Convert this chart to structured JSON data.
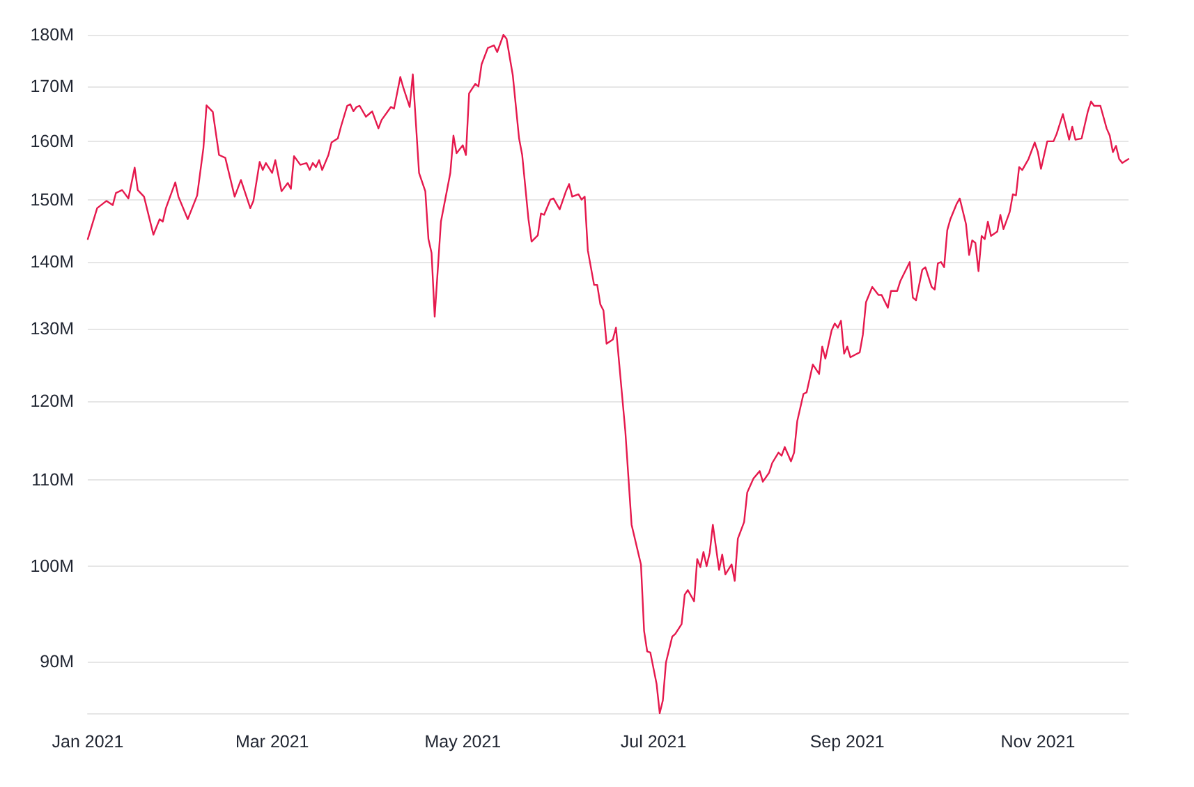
{
  "chart_data": {
    "type": "line",
    "log": "y",
    "grid": "y",
    "marker": "none",
    "line_style": "solid",
    "xlim": [
      "2021-01-01",
      "2021-11-30"
    ],
    "xticks": [
      {
        "value": "2021-01-01",
        "label": "Jan 2021"
      },
      {
        "value": "2021-03-01",
        "label": "Mar 2021"
      },
      {
        "value": "2021-05-01",
        "label": "May 2021"
      },
      {
        "value": "2021-07-01",
        "label": "Jul 2021"
      },
      {
        "value": "2021-09-01",
        "label": "Sep 2021"
      },
      {
        "value": "2021-11-01",
        "label": "Nov 2021"
      }
    ],
    "ylim": [
      85,
      180
    ],
    "yticks": [
      {
        "value": 90,
        "label": "90M"
      },
      {
        "value": 100,
        "label": "100M"
      },
      {
        "value": 110,
        "label": "110M"
      },
      {
        "value": 120,
        "label": "120M"
      },
      {
        "value": 130,
        "label": "130M"
      },
      {
        "value": 140,
        "label": "140M"
      },
      {
        "value": 150,
        "label": "150M"
      },
      {
        "value": 160,
        "label": "160M"
      },
      {
        "value": 170,
        "label": "170M"
      },
      {
        "value": 180,
        "label": "180M"
      }
    ],
    "series": [
      {
        "color": "#e5194d",
        "x": [
          "2021-01-01",
          "2021-01-04",
          "2021-01-07",
          "2021-01-09",
          "2021-01-10",
          "2021-01-12",
          "2021-01-14",
          "2021-01-16",
          "2021-01-17",
          "2021-01-19",
          "2021-01-22",
          "2021-01-24",
          "2021-01-25",
          "2021-01-26",
          "2021-01-29",
          "2021-01-30",
          "2021-02-02",
          "2021-02-05",
          "2021-02-07",
          "2021-02-08",
          "2021-02-10",
          "2021-02-12",
          "2021-02-14",
          "2021-02-17",
          "2021-02-19",
          "2021-02-22",
          "2021-02-23",
          "2021-02-25",
          "2021-02-26",
          "2021-02-27",
          "2021-03-01",
          "2021-03-02",
          "2021-03-04",
          "2021-03-06",
          "2021-03-07",
          "2021-03-08",
          "2021-03-10",
          "2021-03-12",
          "2021-03-13",
          "2021-03-14",
          "2021-03-15",
          "2021-03-16",
          "2021-03-17",
          "2021-03-19",
          "2021-03-20",
          "2021-03-22",
          "2021-03-23",
          "2021-03-25",
          "2021-03-26",
          "2021-03-27",
          "2021-03-28",
          "2021-03-29",
          "2021-03-31",
          "2021-04-01",
          "2021-04-02",
          "2021-04-04",
          "2021-04-05",
          "2021-04-08",
          "2021-04-09",
          "2021-04-11",
          "2021-04-12",
          "2021-04-14",
          "2021-04-15",
          "2021-04-17",
          "2021-04-19",
          "2021-04-20",
          "2021-04-21",
          "2021-04-22",
          "2021-04-24",
          "2021-04-27",
          "2021-04-28",
          "2021-04-29",
          "2021-05-01",
          "2021-05-02",
          "2021-05-03",
          "2021-05-05",
          "2021-05-06",
          "2021-05-07",
          "2021-05-09",
          "2021-05-11",
          "2021-05-12",
          "2021-05-14",
          "2021-05-15",
          "2021-05-17",
          "2021-05-19",
          "2021-05-20",
          "2021-05-22",
          "2021-05-23",
          "2021-05-25",
          "2021-05-26",
          "2021-05-27",
          "2021-05-29",
          "2021-05-30",
          "2021-06-01",
          "2021-06-03",
          "2021-06-04",
          "2021-06-05",
          "2021-06-07",
          "2021-06-08",
          "2021-06-09",
          "2021-06-10",
          "2021-06-12",
          "2021-06-13",
          "2021-06-14",
          "2021-06-15",
          "2021-06-16",
          "2021-06-18",
          "2021-06-19",
          "2021-06-22",
          "2021-06-24",
          "2021-06-27",
          "2021-06-28",
          "2021-06-29",
          "2021-06-30",
          "2021-07-02",
          "2021-07-03",
          "2021-07-04",
          "2021-07-05",
          "2021-07-07",
          "2021-07-08",
          "2021-07-10",
          "2021-07-11",
          "2021-07-12",
          "2021-07-14",
          "2021-07-15",
          "2021-07-16",
          "2021-07-17",
          "2021-07-18",
          "2021-07-19",
          "2021-07-20",
          "2021-07-22",
          "2021-07-23",
          "2021-07-24",
          "2021-07-26",
          "2021-07-27",
          "2021-07-28",
          "2021-07-30",
          "2021-07-31",
          "2021-08-02",
          "2021-08-04",
          "2021-08-05",
          "2021-08-07",
          "2021-08-08",
          "2021-08-10",
          "2021-08-11",
          "2021-08-12",
          "2021-08-14",
          "2021-08-15",
          "2021-08-16",
          "2021-08-18",
          "2021-08-19",
          "2021-08-21",
          "2021-08-23",
          "2021-08-24",
          "2021-08-25",
          "2021-08-27",
          "2021-08-28",
          "2021-08-29",
          "2021-08-30",
          "2021-08-31",
          "2021-09-01",
          "2021-09-02",
          "2021-09-05",
          "2021-09-06",
          "2021-09-07",
          "2021-09-09",
          "2021-09-11",
          "2021-09-12",
          "2021-09-14",
          "2021-09-15",
          "2021-09-17",
          "2021-09-18",
          "2021-09-21",
          "2021-09-22",
          "2021-09-23",
          "2021-09-25",
          "2021-09-26",
          "2021-09-28",
          "2021-09-29",
          "2021-09-30",
          "2021-10-01",
          "2021-10-02",
          "2021-10-03",
          "2021-10-04",
          "2021-10-06",
          "2021-10-07",
          "2021-10-09",
          "2021-10-10",
          "2021-10-11",
          "2021-10-12",
          "2021-10-13",
          "2021-10-14",
          "2021-10-15",
          "2021-10-16",
          "2021-10-17",
          "2021-10-19",
          "2021-10-20",
          "2021-10-21",
          "2021-10-23",
          "2021-10-24",
          "2021-10-25",
          "2021-10-26",
          "2021-10-27",
          "2021-10-29",
          "2021-10-31",
          "2021-11-01",
          "2021-11-02",
          "2021-11-04",
          "2021-11-06",
          "2021-11-07",
          "2021-11-09",
          "2021-11-10",
          "2021-11-11",
          "2021-11-12",
          "2021-11-13",
          "2021-11-15",
          "2021-11-17",
          "2021-11-18",
          "2021-11-19",
          "2021-11-21",
          "2021-11-23",
          "2021-11-24",
          "2021-11-25",
          "2021-11-26",
          "2021-11-27",
          "2021-11-28",
          "2021-11-30"
        ],
        "values": [
          143.6,
          148.6,
          149.8,
          149.1,
          151.1,
          151.6,
          150.2,
          155.4,
          151.6,
          150.5,
          144.3,
          146.8,
          146.4,
          148.6,
          152.9,
          150.5,
          146.8,
          150.7,
          158.8,
          166.5,
          165.3,
          157.6,
          157.1,
          150.5,
          153.3,
          148.6,
          149.8,
          156.4,
          155,
          156.2,
          154.5,
          156.7,
          151.4,
          152.8,
          151.8,
          157.4,
          155.9,
          156.2,
          155,
          156.2,
          155.5,
          156.7,
          155,
          157.6,
          159.8,
          160.5,
          162.6,
          166.4,
          166.7,
          165.4,
          166.2,
          166.4,
          164.4,
          164.9,
          165.4,
          162.3,
          163.8,
          166.2,
          165.9,
          171.8,
          169.7,
          166.2,
          172.3,
          154.5,
          151.4,
          143.6,
          141.4,
          131.8,
          146.4,
          154.5,
          161,
          157.9,
          159.3,
          157.6,
          168.7,
          170.5,
          170,
          174.2,
          177.4,
          177.9,
          176.6,
          180,
          179.2,
          172.1,
          160.5,
          157.6,
          146.8,
          143.2,
          144.2,
          147.7,
          147.5,
          150,
          150.2,
          148.4,
          151.4,
          152.6,
          150.5,
          150.9,
          150,
          150.5,
          141.8,
          136.5,
          136.5,
          133.6,
          132.7,
          127.9,
          128.5,
          130.2,
          116.1,
          104.7,
          100.2,
          93.1,
          91,
          90.9,
          87.8,
          85,
          86.2,
          89.9,
          92.5,
          92.8,
          93.8,
          96.9,
          97.4,
          96.2,
          100.8,
          99.9,
          101.6,
          100,
          101.5,
          104.7,
          99.6,
          101.3,
          99.1,
          100.2,
          98.4,
          103.1,
          105,
          108.5,
          110.2,
          111.1,
          109.8,
          110.9,
          112.1,
          113.4,
          113,
          114.1,
          112.3,
          113.4,
          117.4,
          121,
          121.2,
          125,
          123.7,
          127.5,
          125.8,
          129.8,
          130.8,
          130.2,
          131.2,
          126.5,
          127.5,
          126,
          126.7,
          129.2,
          133.9,
          136.2,
          135,
          135,
          133.1,
          135.6,
          135.6,
          137.1,
          140,
          134.6,
          134.2,
          138.8,
          139.2,
          136.2,
          135.8,
          139.8,
          140,
          139.2,
          145,
          146.8,
          149.3,
          150.2,
          146,
          141.1,
          143.4,
          143,
          138.6,
          144.1,
          143.6,
          146.4,
          144.1,
          144.8,
          147.5,
          145.2,
          148,
          150.9,
          150.7,
          155.5,
          155,
          156.9,
          159.8,
          158.1,
          155.2,
          160,
          160,
          161.3,
          164.9,
          162.6,
          160.3,
          162.6,
          160.3,
          160.5,
          165.4,
          167.2,
          166.4,
          166.4,
          162.3,
          161,
          158.1,
          159.2,
          156.9,
          156.2,
          156.9
        ]
      }
    ]
  }
}
